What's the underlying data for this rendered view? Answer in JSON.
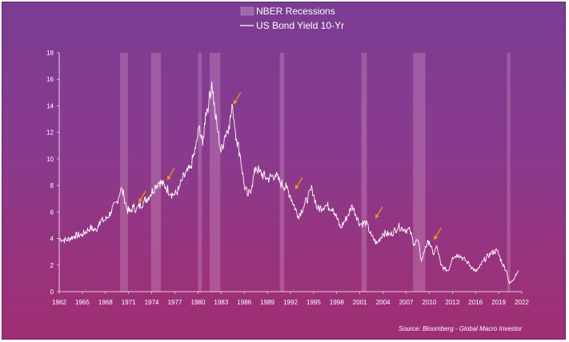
{
  "chart_data": {
    "type": "line",
    "title": "",
    "xlabel": "",
    "ylabel": "",
    "xlim": [
      1962,
      2022
    ],
    "ylim": [
      0,
      18
    ],
    "grid": false,
    "legend_position": "top-center",
    "x_ticks": [
      "1962",
      "1965",
      "1968",
      "1971",
      "1974",
      "1977",
      "1980",
      "1983",
      "1986",
      "1989",
      "1992",
      "1995",
      "1998",
      "2001",
      "2004",
      "2007",
      "2010",
      "2013",
      "2016",
      "2019",
      "2022"
    ],
    "y_ticks": [
      "0",
      "2",
      "4",
      "6",
      "8",
      "10",
      "12",
      "14",
      "16",
      "18"
    ],
    "series": [
      {
        "name": "US Bond Yield 10-Yr",
        "color": "#ffffff",
        "x": [
          1962.0,
          1962.5,
          1963.0,
          1964.0,
          1965.0,
          1966.0,
          1966.8,
          1967.2,
          1968.0,
          1968.7,
          1969.5,
          1970.0,
          1970.4,
          1970.8,
          1971.2,
          1971.6,
          1972.0,
          1973.0,
          1973.8,
          1974.5,
          1975.0,
          1975.8,
          1976.5,
          1977.0,
          1977.5,
          1978.0,
          1979.0,
          1979.7,
          1980.2,
          1980.6,
          1981.0,
          1981.4,
          1981.8,
          1982.2,
          1982.6,
          1983.0,
          1983.5,
          1984.0,
          1984.5,
          1985.0,
          1985.5,
          1986.0,
          1986.5,
          1987.0,
          1987.5,
          1988.0,
          1989.0,
          1990.0,
          1990.7,
          1991.5,
          1992.0,
          1993.0,
          1993.8,
          1994.8,
          1995.5,
          1996.5,
          1997.5,
          1998.5,
          1999.5,
          2000.0,
          2001.0,
          2001.8,
          2002.5,
          2003.2,
          2004.0,
          2005.0,
          2006.0,
          2006.8,
          2007.5,
          2008.0,
          2008.5,
          2009.0,
          2009.5,
          2010.0,
          2010.5,
          2011.0,
          2011.5,
          2012.0,
          2012.5,
          2013.0,
          2013.8,
          2015.0,
          2016.0,
          2016.5,
          2017.0,
          2018.0,
          2018.8,
          2019.5,
          2020.0,
          2020.4,
          2020.8,
          2021.2,
          2021.6
        ],
        "y": [
          4.0,
          3.9,
          3.9,
          4.2,
          4.3,
          4.8,
          4.6,
          5.3,
          5.4,
          6.0,
          6.8,
          7.8,
          7.2,
          6.2,
          6.0,
          6.4,
          6.2,
          6.8,
          7.3,
          8.0,
          8.3,
          7.9,
          7.4,
          7.3,
          7.7,
          8.5,
          9.3,
          10.8,
          12.5,
          11.0,
          13.5,
          14.2,
          15.8,
          13.5,
          12.0,
          10.5,
          11.8,
          12.5,
          13.9,
          11.5,
          10.2,
          8.0,
          7.2,
          8.0,
          9.4,
          9.0,
          8.5,
          8.8,
          8.2,
          7.8,
          7.2,
          5.7,
          6.5,
          7.8,
          6.2,
          6.5,
          6.3,
          4.8,
          5.8,
          6.5,
          5.1,
          5.2,
          4.2,
          3.6,
          4.4,
          4.3,
          4.9,
          4.7,
          4.6,
          3.6,
          3.9,
          2.3,
          3.4,
          3.8,
          2.8,
          3.4,
          2.0,
          1.7,
          1.6,
          2.6,
          2.8,
          2.2,
          1.5,
          1.8,
          2.3,
          2.9,
          3.1,
          2.1,
          1.6,
          0.6,
          0.8,
          1.3,
          1.6
        ]
      }
    ],
    "recession_series_name": "NBER Recessions",
    "recessions": [
      [
        1969.9,
        1970.9
      ],
      [
        1973.9,
        1975.2
      ],
      [
        1980.0,
        1980.5
      ],
      [
        1981.5,
        1982.9
      ],
      [
        1990.6,
        1991.2
      ],
      [
        2001.2,
        2001.9
      ],
      [
        2007.9,
        2009.5
      ],
      [
        2020.1,
        2020.5
      ]
    ],
    "annotations": [
      {
        "type": "arrow",
        "x": 1972.3,
        "y": 6.7
      },
      {
        "type": "arrow",
        "x": 1976.0,
        "y": 8.4
      },
      {
        "type": "arrow",
        "x": 1984.6,
        "y": 14.1
      },
      {
        "type": "arrow",
        "x": 1992.6,
        "y": 7.7
      },
      {
        "type": "arrow",
        "x": 2003.0,
        "y": 5.5
      },
      {
        "type": "arrow",
        "x": 2010.6,
        "y": 3.9
      }
    ],
    "source": "Source: Bloomberg - Global Macro Investor"
  },
  "colors": {
    "background_top": "#7a3d93",
    "background_bottom": "#a12e72",
    "recession_band": "#e6b3d6",
    "axis": "#ffffff",
    "arrow": "#f39c12"
  }
}
